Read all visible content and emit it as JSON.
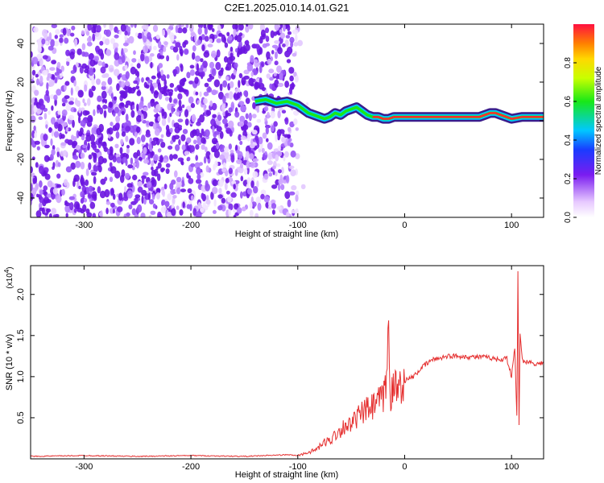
{
  "title": "C2E1.2025.010.14.01.G21",
  "colors": {
    "signal": "#e53030",
    "axis": "#000000"
  },
  "chart_data": [
    {
      "type": "heatmap",
      "xlabel": "Height of straight line (km)",
      "ylabel": "Frequency (Hz)",
      "xlim": [
        -350,
        130
      ],
      "ylim": [
        -50,
        50
      ],
      "xticks": [
        -300,
        -200,
        -100,
        0,
        100
      ],
      "xtick_labels": [
        "-300",
        "-200",
        "-100",
        "0",
        "100"
      ],
      "yticks": [
        -40,
        -20,
        0,
        20,
        40
      ],
      "ytick_labels": [
        "-40",
        "-20",
        "0",
        "20",
        "40"
      ],
      "ridge": {
        "x": [
          -140,
          -130,
          -120,
          -110,
          -105,
          -100,
          -95,
          -90,
          -85,
          -80,
          -75,
          -70,
          -65,
          -60,
          -55,
          -50,
          -45,
          -40,
          -35,
          -30,
          -25,
          -20,
          -15,
          -10,
          -5,
          0,
          10,
          20,
          30,
          40,
          50,
          60,
          70,
          75,
          80,
          85,
          90,
          95,
          100,
          110,
          120,
          130
        ],
        "y": [
          10,
          11,
          9,
          10,
          9,
          8,
          6,
          4,
          3,
          2,
          1,
          2,
          4,
          3,
          5,
          6,
          7,
          5,
          3,
          2,
          2,
          1,
          1,
          2,
          2,
          2,
          2,
          2,
          2,
          2,
          2,
          2,
          2,
          3,
          4,
          4,
          3,
          2,
          1,
          2,
          2,
          2
        ]
      },
      "colorbar": {
        "label": "Normalized spectral amplitude",
        "range": [
          0,
          1
        ],
        "ticks": [
          0,
          0.2,
          0.4,
          0.6,
          0.8
        ],
        "tick_labels": [
          "0.0",
          "0.2",
          "0.4",
          "0.6",
          "0.8"
        ]
      }
    },
    {
      "type": "line",
      "xlabel": "Height of straight line (km)",
      "ylabel": "SNR (10 * v/v)",
      "multiplier": "(x10",
      "multiplier_exp": "4",
      "multiplier_close": ")",
      "xlim": [
        -350,
        130
      ],
      "ylim": [
        0,
        2.35
      ],
      "xticks": [
        -300,
        -200,
        -100,
        0,
        100
      ],
      "xtick_labels": [
        "-300",
        "-200",
        "-100",
        "0",
        "100"
      ],
      "yticks": [
        0.5,
        1.0,
        1.5,
        2.0
      ],
      "ytick_labels": [
        "0.5",
        "1.0",
        "1.5",
        "2.0"
      ],
      "series": [
        {
          "x": [
            -350,
            -300,
            -250,
            -200,
            -150,
            -110,
            -100,
            -95,
            -90,
            -85,
            -80,
            -75,
            -70,
            -65,
            -60,
            -55,
            -50,
            -45,
            -40,
            -35,
            -30,
            -25,
            -20,
            -17,
            -15,
            -13,
            -10,
            -5,
            0,
            5,
            10,
            15,
            20,
            25,
            30,
            40,
            50,
            60,
            70,
            80,
            90,
            95,
            100,
            103,
            105,
            106,
            107,
            108,
            110,
            115,
            120,
            125,
            130
          ],
          "y": [
            0.03,
            0.04,
            0.03,
            0.04,
            0.03,
            0.05,
            0.04,
            0.06,
            0.08,
            0.1,
            0.14,
            0.2,
            0.22,
            0.3,
            0.35,
            0.42,
            0.4,
            0.5,
            0.55,
            0.6,
            0.62,
            0.7,
            0.72,
            0.95,
            1.62,
            0.78,
            0.85,
            0.9,
            0.95,
            0.98,
            1.02,
            1.1,
            1.15,
            1.2,
            1.22,
            1.25,
            1.25,
            1.24,
            1.24,
            1.23,
            1.2,
            1.25,
            1.0,
            1.35,
            0.5,
            2.3,
            0.4,
            1.5,
            1.2,
            1.18,
            1.17,
            1.15,
            1.18
          ]
        }
      ]
    }
  ]
}
